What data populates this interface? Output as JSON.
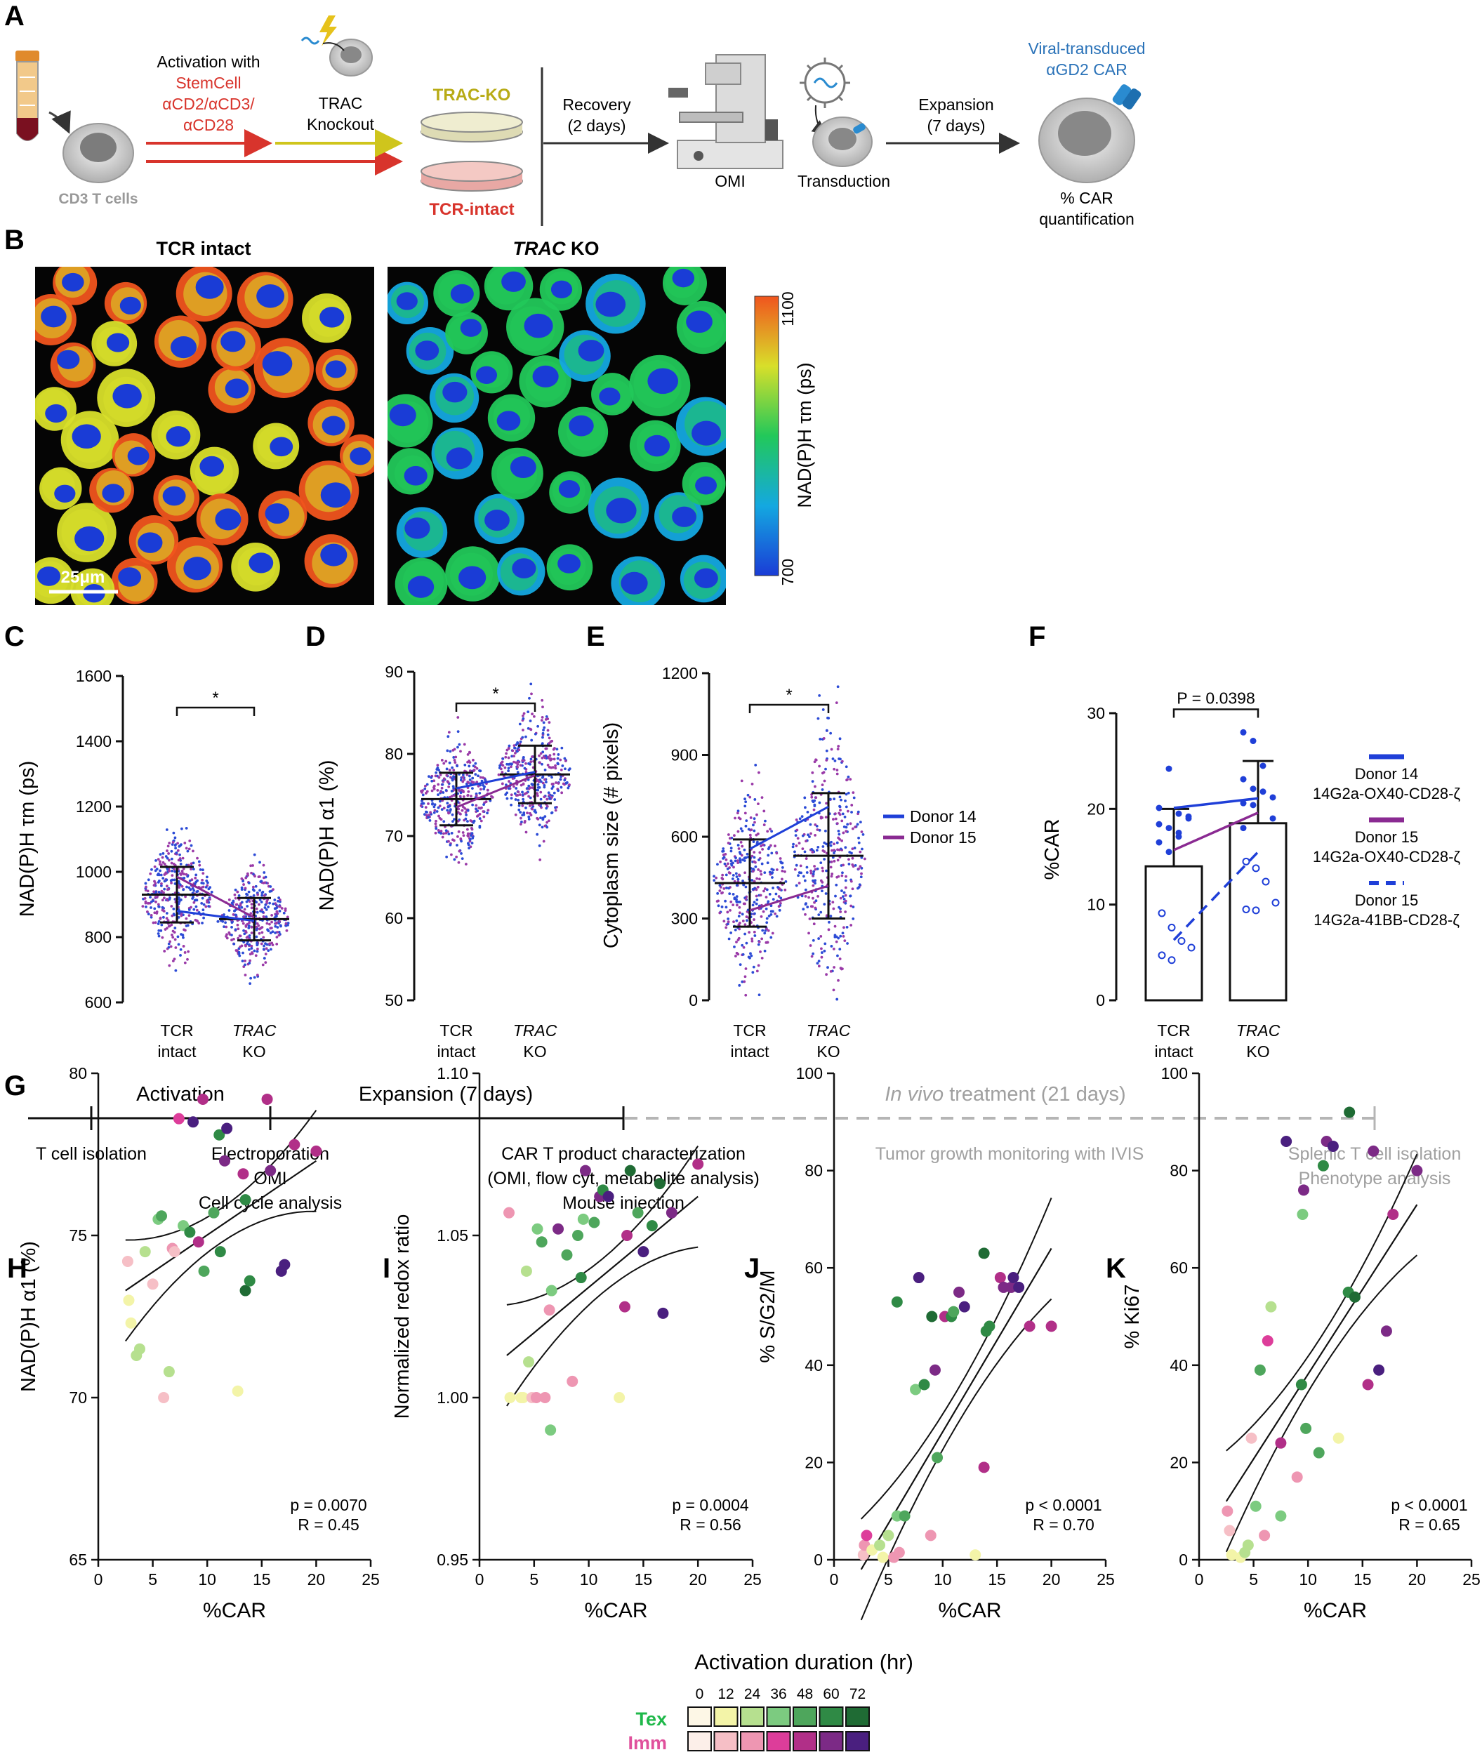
{
  "panel_letters": {
    "A": "A",
    "B": "B",
    "C": "C",
    "D": "D",
    "E": "E",
    "F": "F",
    "G": "G",
    "H": "H",
    "I": "I",
    "J": "J",
    "K": "K"
  },
  "panelA": {
    "cells_label": "CD3 T cells",
    "activation": "Activation with",
    "activation_reagent": [
      "StemCell",
      "αCD2/αCD3/",
      "αCD28"
    ],
    "knockout": [
      "TRAC",
      "Knockout"
    ],
    "trac_ko": "TRAC-KO",
    "tcr_intact": "TCR-intact",
    "recovery": [
      "Recovery",
      "(2 days)"
    ],
    "omi": "OMI",
    "transduction": "Transduction",
    "expansion": [
      "Expansion",
      "(7 days)"
    ],
    "car": [
      "Viral-transduced",
      "αGD2 CAR"
    ],
    "quant": [
      "% CAR",
      "quantification"
    ]
  },
  "panelB": {
    "left_title": "TCR intact",
    "right_title_italic": "TRAC",
    "right_title_rest": " KO",
    "scale": "25μm",
    "colorbar_label": "NAD(P)H τm (ps)",
    "colorbar_max": "1100",
    "colorbar_min": "700",
    "colors": {
      "c0": "#1a3cd6",
      "c1": "#14a8e0",
      "c2": "#22c85a",
      "c3": "#d8df2a",
      "c4": "#f0541e"
    }
  },
  "legend_donors": {
    "d14": "Donor 14",
    "d15": "Donor 15",
    "c14": "#1f3fd8",
    "c15": "#8a2a92"
  },
  "scatter_x": [
    "TCR",
    "intact",
    "TRAC",
    "KO"
  ],
  "chart_data": [
    {
      "id": "C",
      "type": "scatter",
      "ylabel": "NAD(P)H τm (ps)",
      "ylim": [
        600,
        1600
      ],
      "yticks": [
        600,
        800,
        1000,
        1200,
        1400,
        1600
      ],
      "categories": [
        "TCR intact",
        "TRAC KO"
      ],
      "significance": "*",
      "means": [
        930,
        855
      ],
      "sd": [
        85,
        65
      ],
      "series": [
        {
          "name": "Donor 14",
          "values": [
            880,
            850
          ]
        },
        {
          "name": "Donor 15",
          "values": [
            985,
            860
          ]
        }
      ]
    },
    {
      "id": "D",
      "type": "scatter",
      "ylabel": "NAD(P)H α1 (%)",
      "ylim": [
        50,
        90
      ],
      "yticks": [
        50,
        60,
        70,
        80,
        90
      ],
      "categories": [
        "TCR intact",
        "TRAC KO"
      ],
      "significance": "*",
      "means": [
        74.5,
        77.5
      ],
      "sd": [
        3.2,
        3.5
      ],
      "series": [
        {
          "name": "Donor 14",
          "values": [
            75.8,
            77.8
          ]
        },
        {
          "name": "Donor 15",
          "values": [
            73.5,
            77.4
          ]
        }
      ]
    },
    {
      "id": "E",
      "type": "scatter",
      "ylabel": "Cytoplasm size (# pixels)",
      "ylim": [
        0,
        1200
      ],
      "yticks": [
        0,
        300,
        600,
        900,
        1200
      ],
      "categories": [
        "TCR intact",
        "TRAC KO"
      ],
      "significance": "*",
      "means": [
        430,
        530
      ],
      "sd": [
        160,
        230
      ],
      "series": [
        {
          "name": "Donor 14",
          "values": [
            555,
            710
          ]
        },
        {
          "name": "Donor 15",
          "values": [
            330,
            420
          ]
        }
      ]
    },
    {
      "id": "F",
      "type": "bar",
      "ylabel": "%CAR",
      "ylim": [
        0,
        30
      ],
      "yticks": [
        0,
        10,
        20,
        30
      ],
      "categories": [
        "TCR intact",
        "TRAC KO"
      ],
      "values": [
        14,
        18.5
      ],
      "error": [
        6,
        6.5
      ],
      "pvalue": "P = 0.0398",
      "series": [
        {
          "name": "Donor 14 14G2a-OX40-CD28-ζ",
          "values": [
            20.1,
            21.1
          ]
        },
        {
          "name": "Donor 15 14G2a-OX40-CD28-ζ",
          "values": [
            15.7,
            19.6
          ]
        },
        {
          "name": "Donor 15 14G2a-41BB-CD28-ζ",
          "values": [
            6.3,
            15.5
          ]
        }
      ]
    },
    {
      "id": "H",
      "type": "scatter",
      "ylabel": "NAD(P)H α1 (%)",
      "xlabel": "%CAR",
      "xlim": [
        0,
        25
      ],
      "ylim": [
        65,
        80
      ],
      "xticks": [
        0,
        5,
        10,
        15,
        20,
        25
      ],
      "yticks": [
        65,
        70,
        75,
        80
      ],
      "p": "p = 0.0070",
      "r": "R = 0.45",
      "fit": [
        [
          2.5,
          73.3
        ],
        [
          20,
          77.3
        ]
      ],
      "points": [
        [
          2.7,
          74.2,
          "i1"
        ],
        [
          2.8,
          73.0,
          "t1"
        ],
        [
          3,
          72.3,
          "t1"
        ],
        [
          3.5,
          71.3,
          "t2"
        ],
        [
          3.8,
          71.5,
          "t2"
        ],
        [
          4.3,
          74.5,
          "t2"
        ],
        [
          5,
          73.5,
          "i1"
        ],
        [
          5.5,
          75.5,
          "t3"
        ],
        [
          5.8,
          75.6,
          "t4"
        ],
        [
          6,
          70,
          "i1"
        ],
        [
          6.5,
          70.8,
          "t2"
        ],
        [
          6.8,
          74.6,
          "i2"
        ],
        [
          7,
          74.5,
          "i1"
        ],
        [
          7.4,
          78.6,
          "i3"
        ],
        [
          7.8,
          75.3,
          "t3"
        ],
        [
          8.4,
          75.1,
          "t5"
        ],
        [
          8.7,
          78.5,
          "i6"
        ],
        [
          9.2,
          74.8,
          "i4"
        ],
        [
          9.6,
          79.2,
          "i4"
        ],
        [
          9.7,
          73.9,
          "t4"
        ],
        [
          10.6,
          75.7,
          "t4"
        ],
        [
          11.1,
          78.1,
          "t5"
        ],
        [
          11.2,
          74.5,
          "t5"
        ],
        [
          11.6,
          77.3,
          "i5"
        ],
        [
          11.8,
          78.3,
          "i6"
        ],
        [
          12.8,
          70.2,
          "t1"
        ],
        [
          13.3,
          76.9,
          "i4"
        ],
        [
          13.5,
          76.1,
          "t5"
        ],
        [
          13.5,
          73.3,
          "t6"
        ],
        [
          13.9,
          73.6,
          "t5"
        ],
        [
          15.5,
          79.2,
          "i4"
        ],
        [
          15.8,
          77.0,
          "i5"
        ],
        [
          16.8,
          73.9,
          "i6"
        ],
        [
          17.1,
          74.1,
          "i6"
        ],
        [
          18,
          77.8,
          "i4"
        ],
        [
          20,
          77.6,
          "i4"
        ]
      ]
    },
    {
      "id": "I",
      "type": "scatter",
      "ylabel": "Normalized redox ratio",
      "xlabel": "%CAR",
      "xlim": [
        0,
        25
      ],
      "ylim": [
        0.95,
        1.1
      ],
      "xticks": [
        0,
        5,
        10,
        15,
        20,
        25
      ],
      "yticks": [
        0.95,
        1.0,
        1.05,
        1.1
      ],
      "p": "p = 0.0004",
      "r": "R = 0.56",
      "fit": [
        [
          2.5,
          1.013
        ],
        [
          20,
          1.062
        ]
      ],
      "points": [
        [
          2.7,
          1.057,
          "i2"
        ],
        [
          2.8,
          1.0,
          "t1"
        ],
        [
          3.8,
          1.0,
          "t1"
        ],
        [
          4,
          1.0,
          "t1"
        ],
        [
          4.3,
          1.039,
          "t2"
        ],
        [
          4.5,
          1.011,
          "t2"
        ],
        [
          4.8,
          1.0,
          "i1"
        ],
        [
          5.2,
          1.0,
          "i2"
        ],
        [
          5.3,
          1.052,
          "t3"
        ],
        [
          5.7,
          1.048,
          "t4"
        ],
        [
          6,
          1.0,
          "i2"
        ],
        [
          6.4,
          1.027,
          "i2"
        ],
        [
          6.5,
          0.99,
          "t3"
        ],
        [
          6.6,
          1.033,
          "t3"
        ],
        [
          7.2,
          1.052,
          "i5"
        ],
        [
          8,
          1.044,
          "t4"
        ],
        [
          8.5,
          1.005,
          "i2"
        ],
        [
          9,
          1.05,
          "t4"
        ],
        [
          9.3,
          1.037,
          "t5"
        ],
        [
          9.5,
          1.055,
          "t3"
        ],
        [
          9.7,
          1.07,
          "i5"
        ],
        [
          10.5,
          1.054,
          "t4"
        ],
        [
          11,
          1.062,
          "i5"
        ],
        [
          11.3,
          1.064,
          "t5"
        ],
        [
          11.8,
          1.062,
          "i6"
        ],
        [
          12.8,
          1.0,
          "t1"
        ],
        [
          13.3,
          1.028,
          "i4"
        ],
        [
          13.5,
          1.05,
          "i4"
        ],
        [
          13.8,
          1.07,
          "t6"
        ],
        [
          14.5,
          1.057,
          "t4"
        ],
        [
          15,
          1.045,
          "i6"
        ],
        [
          15.8,
          1.053,
          "t5"
        ],
        [
          16.5,
          1.066,
          "t6"
        ],
        [
          16.8,
          1.026,
          "i6"
        ],
        [
          17.6,
          1.057,
          "i5"
        ],
        [
          20,
          1.072,
          "i4"
        ]
      ]
    },
    {
      "id": "J",
      "type": "scatter",
      "ylabel": "% S/G2/M",
      "xlabel": "%CAR",
      "xlim": [
        0,
        25
      ],
      "ylim": [
        0,
        100
      ],
      "xticks": [
        0,
        5,
        10,
        15,
        20,
        25
      ],
      "yticks": [
        0,
        20,
        40,
        60,
        80,
        100
      ],
      "p": "p < 0.0001",
      "r": "R = 0.70",
      "fit": [
        [
          2.5,
          -2
        ],
        [
          20,
          64
        ]
      ],
      "points": [
        [
          2.7,
          1,
          "i1"
        ],
        [
          2.8,
          3,
          "i2"
        ],
        [
          3,
          5,
          "i3"
        ],
        [
          3.5,
          2,
          "t1"
        ],
        [
          4.2,
          3,
          "t2"
        ],
        [
          4.5,
          0.5,
          "t1"
        ],
        [
          5,
          5,
          "t2"
        ],
        [
          5.5,
          0.5,
          "i2"
        ],
        [
          5.8,
          9,
          "t3"
        ],
        [
          6,
          1.5,
          "i2"
        ],
        [
          6.5,
          9,
          "t4"
        ],
        [
          5.8,
          53,
          "t5"
        ],
        [
          7.5,
          35,
          "t3"
        ],
        [
          7.8,
          58,
          "i6"
        ],
        [
          8.3,
          36,
          "t5"
        ],
        [
          8.9,
          5,
          "i2"
        ],
        [
          9,
          50,
          "t6"
        ],
        [
          9.3,
          39,
          "i5"
        ],
        [
          9.5,
          21,
          "t4"
        ],
        [
          10.2,
          50,
          "i4"
        ],
        [
          10.8,
          50,
          "t5"
        ],
        [
          11,
          51,
          "t4"
        ],
        [
          11.5,
          55,
          "i5"
        ],
        [
          12,
          52,
          "i6"
        ],
        [
          13,
          1,
          "t1"
        ],
        [
          13.8,
          19,
          "i4"
        ],
        [
          13.8,
          63,
          "t6"
        ],
        [
          14,
          47,
          "t5"
        ],
        [
          14.3,
          48,
          "t5"
        ],
        [
          15.3,
          58,
          "i4"
        ],
        [
          15.6,
          56,
          "i5"
        ],
        [
          16.3,
          56,
          "i5"
        ],
        [
          16.5,
          58,
          "i6"
        ],
        [
          17,
          56,
          "i6"
        ],
        [
          18,
          48,
          "i4"
        ],
        [
          20,
          48,
          "i4"
        ]
      ]
    },
    {
      "id": "K",
      "type": "scatter",
      "ylabel": "% Ki67",
      "xlabel": "%CAR",
      "xlim": [
        0,
        25
      ],
      "ylim": [
        0,
        100
      ],
      "xticks": [
        0,
        5,
        10,
        15,
        20,
        25
      ],
      "yticks": [
        0,
        20,
        40,
        60,
        80,
        100
      ],
      "p": "p < 0.0001",
      "r": "R = 0.65",
      "fit": [
        [
          2.5,
          12
        ],
        [
          20,
          73
        ]
      ],
      "points": [
        [
          2.6,
          10,
          "i2"
        ],
        [
          2.8,
          6,
          "i1"
        ],
        [
          3,
          1,
          "t1"
        ],
        [
          3.8,
          0.5,
          "t1"
        ],
        [
          4.2,
          1.5,
          "t2"
        ],
        [
          4.5,
          3,
          "t2"
        ],
        [
          4.8,
          25,
          "i1"
        ],
        [
          5.2,
          11,
          "t3"
        ],
        [
          5.6,
          39,
          "t4"
        ],
        [
          6,
          5,
          "i2"
        ],
        [
          6.3,
          45,
          "i3"
        ],
        [
          6.6,
          52,
          "t2"
        ],
        [
          7.5,
          24,
          "i4"
        ],
        [
          7.5,
          9,
          "t3"
        ],
        [
          8,
          86,
          "i6"
        ],
        [
          9,
          17,
          "i2"
        ],
        [
          9.4,
          36,
          "t5"
        ],
        [
          9.5,
          71,
          "t3"
        ],
        [
          9.6,
          76,
          "i5"
        ],
        [
          9.8,
          27,
          "t4"
        ],
        [
          11,
          22,
          "t4"
        ],
        [
          11.7,
          86,
          "i5"
        ],
        [
          11.4,
          81,
          "t5"
        ],
        [
          12.3,
          85,
          "i6"
        ],
        [
          12.8,
          25,
          "t1"
        ],
        [
          13.8,
          92,
          "t6"
        ],
        [
          13.7,
          55,
          "t5"
        ],
        [
          14.3,
          54,
          "t6"
        ],
        [
          15.5,
          36,
          "i4"
        ],
        [
          16,
          84,
          "i5"
        ],
        [
          16.5,
          39,
          "i6"
        ],
        [
          17.2,
          47,
          "i5"
        ],
        [
          17.8,
          71,
          "i4"
        ],
        [
          20,
          80,
          "i5"
        ]
      ]
    }
  ],
  "panelF_legend": [
    {
      "name": "Donor 14",
      "construct": "14G2a-OX40-CD28-ζ",
      "style": "solid",
      "color": "#1f3fd8"
    },
    {
      "name": "Donor 15",
      "construct": "14G2a-OX40-CD28-ζ",
      "style": "solid",
      "color": "#8a2a92"
    },
    {
      "name": "Donor 15",
      "construct": "14G2a-41BB-CD28-ζ",
      "style": "dashed",
      "color": "#1f3fd8"
    }
  ],
  "panelG": {
    "activation": "Activation",
    "expansion": "Expansion (7 days)",
    "invivo_italic": "In vivo",
    "invivo_rest": " treatment (21 days)",
    "tcell_isolation": "T cell isolation",
    "electroporation": [
      "Electroporation",
      "OMI",
      "Cell cycle analysis"
    ],
    "characterization": [
      "CAR T product characterization",
      "(OMI, flow cyt, metabolite analysis)",
      "Mouse injection"
    ],
    "tumor": "Tumor growth monitoring with IVIS",
    "splenic": [
      "Splenic T cell isolation",
      "Phenotype analysis"
    ]
  },
  "activation_legend": {
    "title": "Activation duration (hr)",
    "hours": [
      "0",
      "12",
      "24",
      "36",
      "48",
      "60",
      "72"
    ],
    "tex_label": "Tex",
    "imm_label": "Imm",
    "tex_colors": [
      "#fdf7e6",
      "#f3f4a8",
      "#b6e08f",
      "#7ccb80",
      "#4ea65c",
      "#2f8a45",
      "#1f6b34"
    ],
    "imm_colors": [
      "#fcefe9",
      "#f6bfc6",
      "#ee96b2",
      "#dd3d9a",
      "#b12f88",
      "#7c2a86",
      "#4a1f7f"
    ]
  }
}
